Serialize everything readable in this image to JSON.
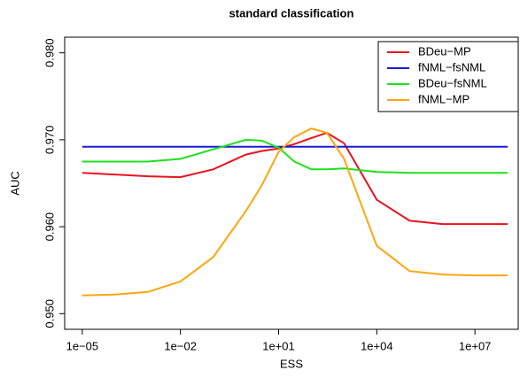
{
  "chart_data": {
    "type": "line",
    "title": "standard classification",
    "x_label": "ESS",
    "y_label": "AUC",
    "log_x": true,
    "grid": false,
    "legend": "top-right",
    "x": [
      1e-05,
      0.0001,
      0.001,
      0.01,
      0.1,
      1,
      3,
      10,
      30,
      100,
      300,
      1000,
      10000.0,
      100000.0,
      1000000.0,
      10000000.0,
      100000000.0
    ],
    "series": [
      {
        "name": "BDeu−MP",
        "color": "#e8141e",
        "values": [
          0.9662,
          0.966,
          0.9658,
          0.9657,
          0.9666,
          0.9683,
          0.9687,
          0.969,
          0.9695,
          0.9702,
          0.9708,
          0.9696,
          0.9631,
          0.9607,
          0.9603,
          0.9603,
          0.9603
        ]
      },
      {
        "name": "fNML−fsNML",
        "color": "#1a1ad8",
        "values": [
          0.9692,
          0.9692,
          0.9692,
          0.9692,
          0.9692,
          0.9692,
          0.9692,
          0.9692,
          0.9692,
          0.9692,
          0.9692,
          0.9692,
          0.9692,
          0.9692,
          0.9692,
          0.9692,
          0.9692
        ]
      },
      {
        "name": "BDeu−fsNML",
        "color": "#1ee01e",
        "values": [
          0.9675,
          0.9675,
          0.9675,
          0.9678,
          0.9689,
          0.97,
          0.9699,
          0.9691,
          0.9675,
          0.9666,
          0.9666,
          0.9667,
          0.9663,
          0.9662,
          0.9662,
          0.9662,
          0.9662
        ]
      },
      {
        "name": "fNML−MP",
        "color": "#ffa510",
        "values": [
          0.9521,
          0.9522,
          0.9525,
          0.9537,
          0.9565,
          0.9618,
          0.9647,
          0.9686,
          0.9703,
          0.9713,
          0.9708,
          0.9678,
          0.9578,
          0.9549,
          0.9545,
          0.9544,
          0.9544
        ]
      }
    ],
    "xlim": [
      2.9e-06,
      210000000.0
    ],
    "xticks": [
      {
        "value": 1e-05,
        "label": "1e−05"
      },
      {
        "value": 0.01,
        "label": "1e−02"
      },
      {
        "value": 10,
        "label": "1e+01"
      },
      {
        "value": 10000.0,
        "label": "1e+04"
      },
      {
        "value": 10000000.0,
        "label": "1e+07"
      }
    ],
    "ylim": [
      0.9482,
      0.9818
    ],
    "yticks": [
      {
        "value": 0.95,
        "label": "0.950"
      },
      {
        "value": 0.96,
        "label": "0.960"
      },
      {
        "value": 0.97,
        "label": "0.970"
      },
      {
        "value": 0.98,
        "label": "0.980"
      }
    ]
  }
}
